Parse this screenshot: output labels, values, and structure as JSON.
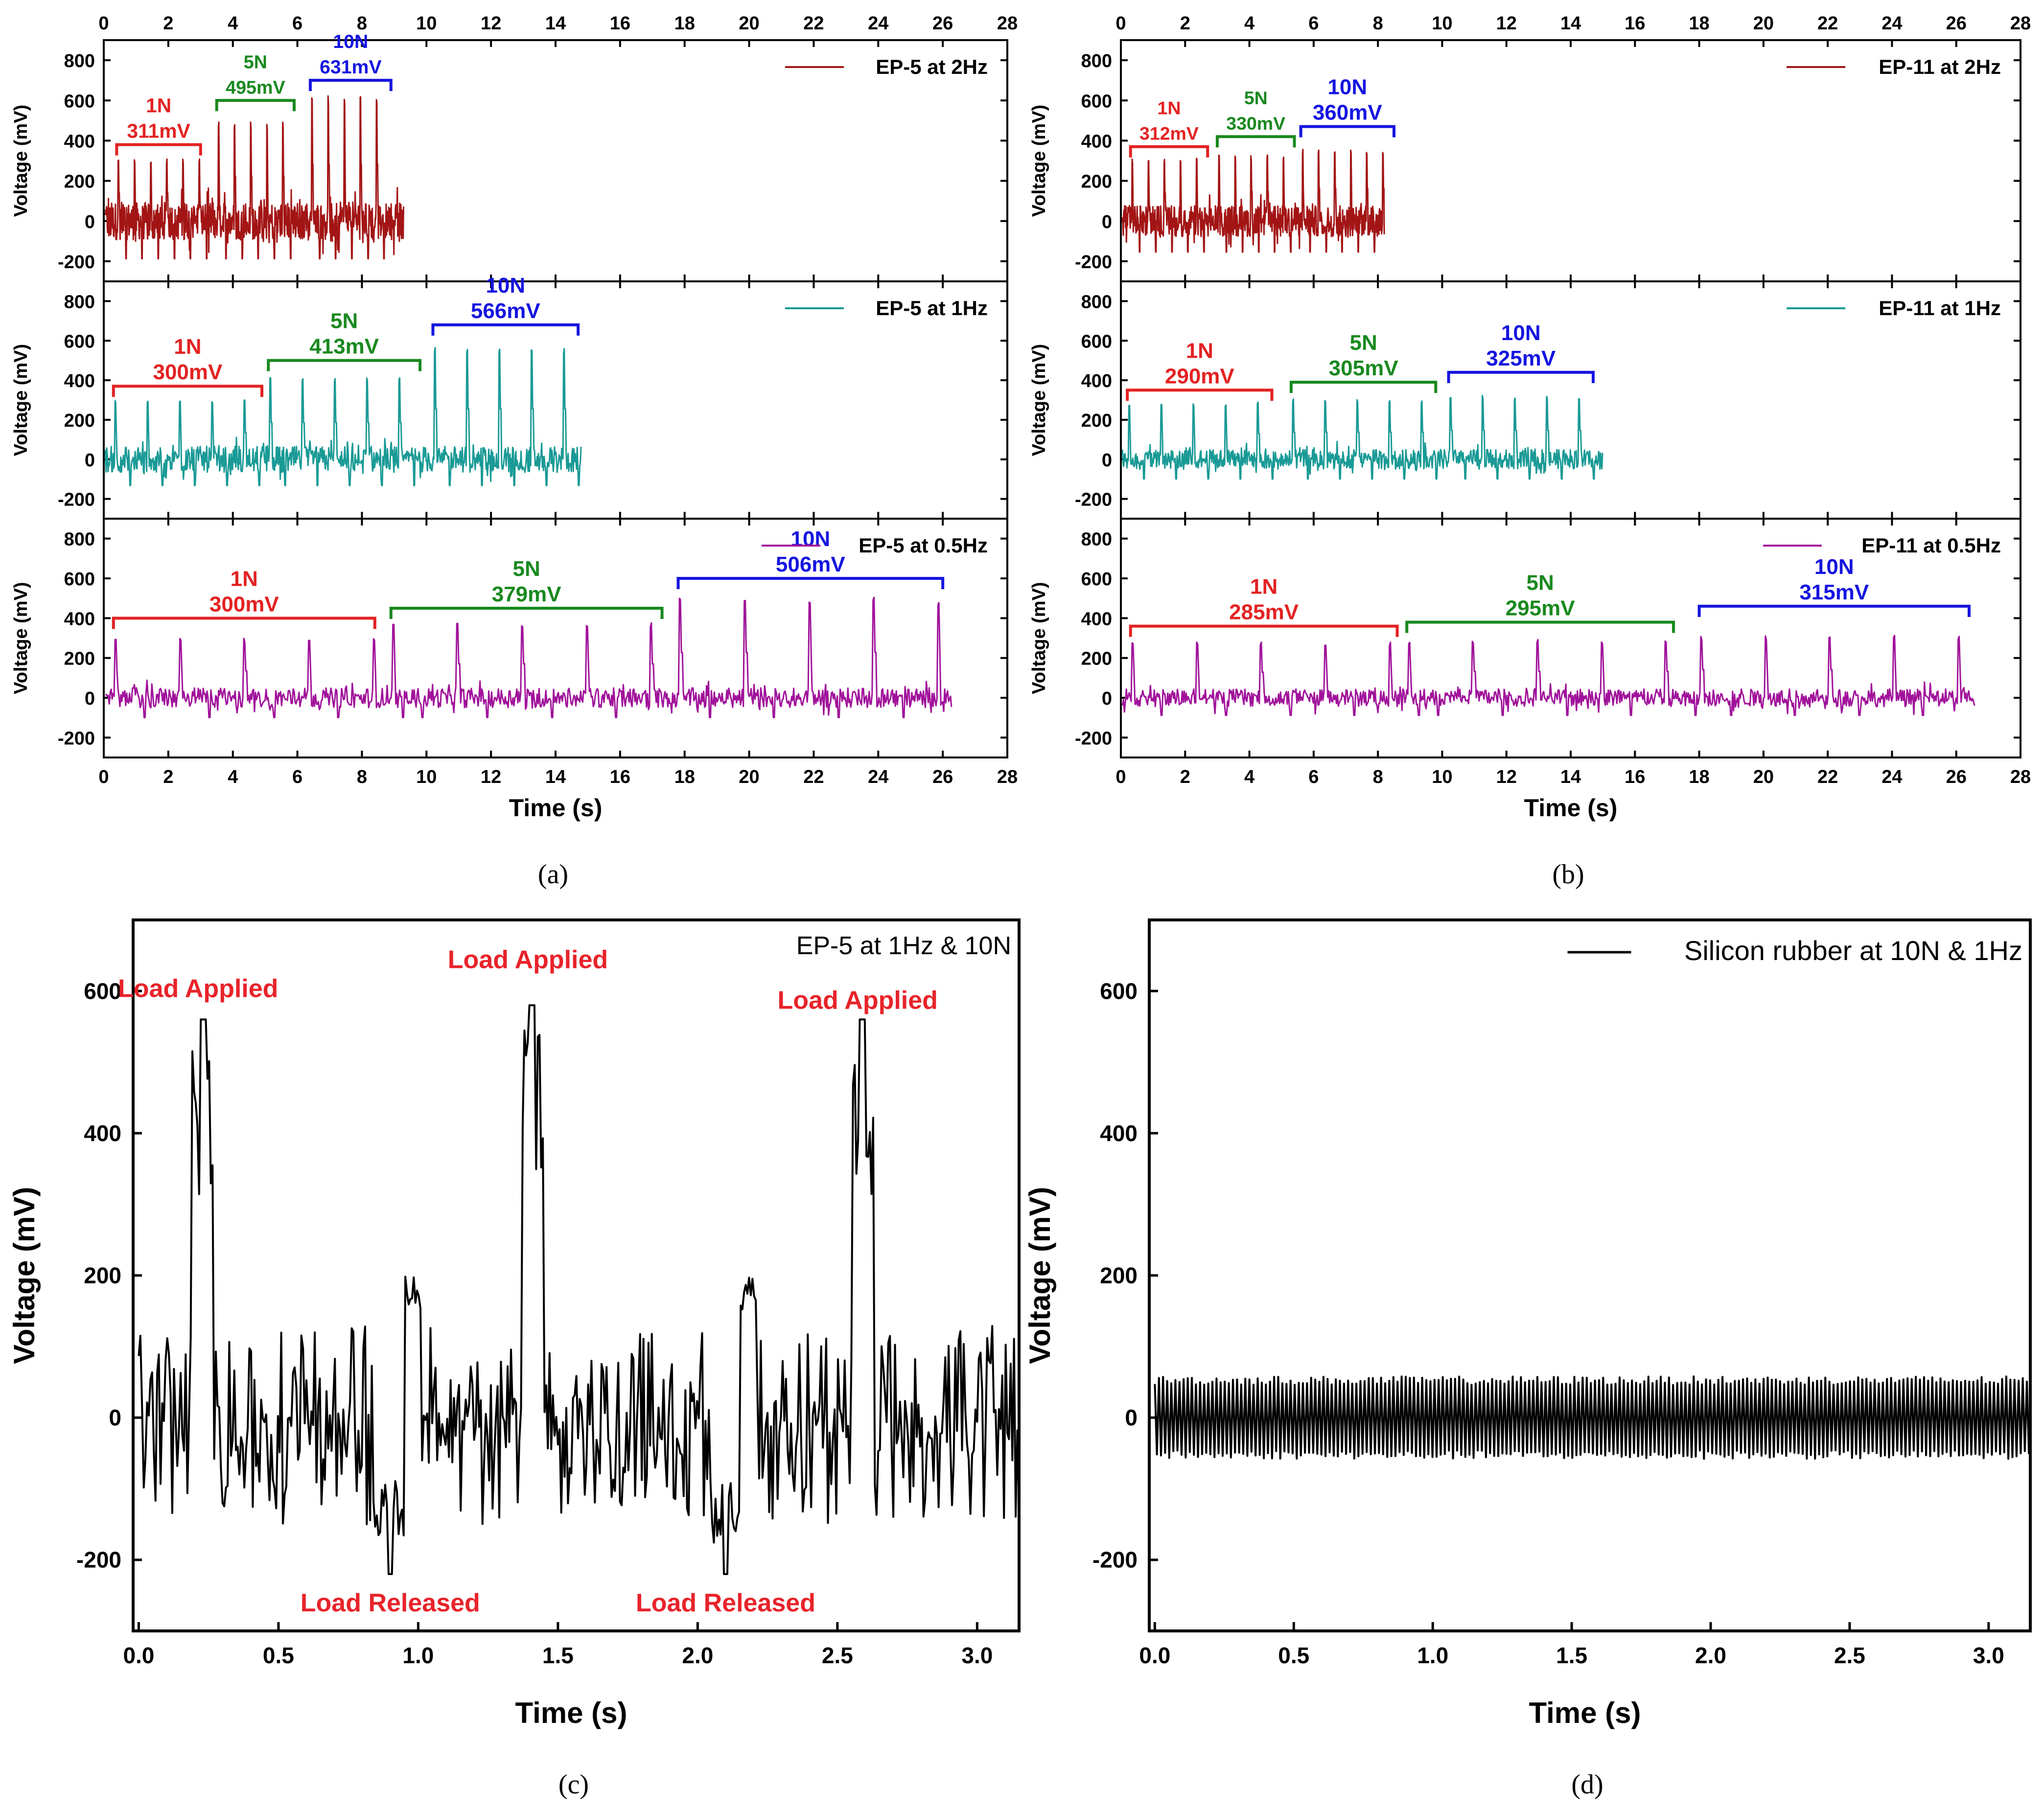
{
  "chart_data": [
    {
      "panel": "a",
      "type": "line",
      "caption": "(a)",
      "xlabel": "Time (s)",
      "xlim": [
        0,
        28
      ],
      "xticks": [
        0,
        2,
        4,
        6,
        8,
        10,
        12,
        14,
        16,
        18,
        20,
        22,
        24,
        26,
        28
      ],
      "subplots": [
        {
          "ylabel": "Voltage (mV)",
          "ylim": [
            -300,
            900
          ],
          "yticks": [
            -200,
            0,
            200,
            400,
            600,
            800
          ],
          "legend": "EP-5 at 2Hz",
          "color": "#a31515",
          "freq_hz": 2,
          "x_end": 9.3,
          "baseline_amp": 170,
          "groups": [
            {
              "force": "1N",
              "value": "311mV",
              "x_start": 0.4,
              "x_end": 3.0,
              "peak": 311,
              "color": "#e32222",
              "level": 380,
              "label_bracket_gap": [
                0.55,
                0.75
              ]
            },
            {
              "force": "5N",
              "value": "495mV",
              "x_start": 3.5,
              "x_end": 5.9,
              "peak": 495,
              "color": "#19891f",
              "level": 600,
              "label_bracket_gap": [
                0.55,
                0.75
              ]
            },
            {
              "force": "10N",
              "value": "631mV",
              "x_start": 6.4,
              "x_end": 8.9,
              "peak": 631,
              "color": "#1515e0",
              "level": 700,
              "label_bracket_gap": [
                0.55,
                0.75
              ]
            }
          ]
        },
        {
          "ylabel": "Voltage (mV)",
          "ylim": [
            -300,
            900
          ],
          "yticks": [
            -200,
            0,
            200,
            400,
            600,
            800
          ],
          "legend": "EP-5 at 1Hz",
          "color": "#1a9a96",
          "freq_hz": 1,
          "x_end": 14.8,
          "baseline_amp": 120,
          "groups": [
            {
              "force": "1N",
              "value": "300mV",
              "x_start": 0.3,
              "x_end": 4.9,
              "peak": 300,
              "color": "#e32222",
              "level": 370
            },
            {
              "force": "5N",
              "value": "413mV",
              "x_start": 5.1,
              "x_end": 9.8,
              "peak": 413,
              "color": "#19891f",
              "level": 500
            },
            {
              "force": "10N",
              "value": "566mV",
              "x_start": 10.2,
              "x_end": 14.7,
              "peak": 566,
              "color": "#1515e0",
              "level": 680
            }
          ]
        },
        {
          "ylabel": "Voltage (mV)",
          "ylim": [
            -300,
            900
          ],
          "yticks": [
            -200,
            0,
            200,
            400,
            600,
            800
          ],
          "legend": "EP-5 at 0.5Hz",
          "color": "#a0129a",
          "freq_hz": 0.5,
          "x_end": 26.3,
          "baseline_amp": 90,
          "groups": [
            {
              "force": "1N",
              "value": "300mV",
              "x_start": 0.3,
              "x_end": 8.4,
              "peak": 300,
              "color": "#e32222",
              "level": 400
            },
            {
              "force": "5N",
              "value": "379mV",
              "x_start": 8.9,
              "x_end": 17.3,
              "peak": 379,
              "color": "#19891f",
              "level": 450
            },
            {
              "force": "10N",
              "value": "506mV",
              "x_start": 17.8,
              "x_end": 26.0,
              "peak": 506,
              "color": "#1515e0",
              "level": 600
            }
          ]
        }
      ]
    },
    {
      "panel": "b",
      "type": "line",
      "caption": "(b)",
      "xlabel": "Time (s)",
      "xlim": [
        0,
        28
      ],
      "xticks": [
        0,
        2,
        4,
        6,
        8,
        10,
        12,
        14,
        16,
        18,
        20,
        22,
        24,
        26,
        28
      ],
      "subplots": [
        {
          "ylabel": "Voltage (mV)",
          "ylim": [
            -300,
            900
          ],
          "yticks": [
            -200,
            0,
            200,
            400,
            600,
            800
          ],
          "legend": "EP-11 at 2Hz",
          "color": "#a31515",
          "freq_hz": 2,
          "x_end": 8.2,
          "baseline_amp": 140,
          "groups": [
            {
              "force": "1N",
              "value": "312mV",
              "x_start": 0.3,
              "x_end": 2.7,
              "peak": 312,
              "color": "#e32222",
              "level": 370
            },
            {
              "force": "5N",
              "value": "330mV",
              "x_start": 3.0,
              "x_end": 5.4,
              "peak": 330,
              "color": "#19891f",
              "level": 420
            },
            {
              "force": "10N",
              "value": "360mV",
              "x_start": 5.6,
              "x_end": 8.5,
              "peak": 360,
              "color": "#1515e0",
              "level": 470
            }
          ]
        },
        {
          "ylabel": "Voltage (mV)",
          "ylim": [
            -300,
            900
          ],
          "yticks": [
            -200,
            0,
            200,
            400,
            600,
            800
          ],
          "legend": "EP-11 at 1Hz",
          "color": "#1a9a96",
          "freq_hz": 1,
          "x_end": 15.0,
          "baseline_amp": 90,
          "groups": [
            {
              "force": "1N",
              "value": "290mV",
              "x_start": 0.2,
              "x_end": 4.7,
              "peak": 290,
              "color": "#e32222",
              "level": 350
            },
            {
              "force": "5N",
              "value": "305mV",
              "x_start": 5.3,
              "x_end": 9.8,
              "peak": 305,
              "color": "#19891f",
              "level": 390
            },
            {
              "force": "10N",
              "value": "325mV",
              "x_start": 10.2,
              "x_end": 14.7,
              "peak": 325,
              "color": "#1515e0",
              "level": 440
            }
          ]
        },
        {
          "ylabel": "Voltage (mV)",
          "ylim": [
            -300,
            900
          ],
          "yticks": [
            -200,
            0,
            200,
            400,
            600,
            800
          ],
          "legend": "EP-11 at 0.5Hz",
          "color": "#a0129a",
          "freq_hz": 0.5,
          "x_end": 26.6,
          "baseline_amp": 80,
          "groups": [
            {
              "force": "1N",
              "value": "285mV",
              "x_start": 0.3,
              "x_end": 8.6,
              "peak": 285,
              "color": "#e32222",
              "level": 360
            },
            {
              "force": "5N",
              "value": "295mV",
              "x_start": 8.9,
              "x_end": 17.2,
              "peak": 295,
              "color": "#19891f",
              "level": 380
            },
            {
              "force": "10N",
              "value": "315mV",
              "x_start": 18.0,
              "x_end": 26.4,
              "peak": 315,
              "color": "#1515e0",
              "level": 460
            }
          ]
        }
      ]
    },
    {
      "panel": "c",
      "type": "line",
      "caption": "(c)",
      "xlabel": "Time (s)",
      "ylabel": "Voltage (mV)",
      "xlim": [
        -0.02,
        3.15
      ],
      "ylim": [
        -300,
        700
      ],
      "xticks": [
        0.0,
        0.5,
        1.0,
        1.5,
        2.0,
        2.5,
        3.0
      ],
      "yticks": [
        -200,
        0,
        200,
        400,
        600
      ],
      "legend": "EP-5 at 1Hz & 10N",
      "series_color": "#000000",
      "peaks": [
        {
          "x": 0.23,
          "y": 560,
          "label": "Load Applied"
        },
        {
          "x": 1.41,
          "y": 580,
          "label": "Load Applied"
        },
        {
          "x": 2.59,
          "y": 560,
          "label": "Load Applied"
        }
      ],
      "troughs": [
        {
          "x": 0.9,
          "y": -220,
          "label": "Load Released"
        },
        {
          "x": 2.1,
          "y": -220,
          "label": "Load Released"
        }
      ]
    },
    {
      "panel": "d",
      "type": "line",
      "caption": "(d)",
      "xlabel": "Time (s)",
      "ylabel": "Voltage (mV)",
      "xlim": [
        -0.02,
        3.15
      ],
      "ylim": [
        -300,
        700
      ],
      "xticks": [
        0.0,
        0.5,
        1.0,
        1.5,
        2.0,
        2.5,
        3.0
      ],
      "yticks": [
        -200,
        0,
        200,
        400,
        600
      ],
      "legend": "Silicon rubber at 10N & 1Hz",
      "series_color": "#000000",
      "amplitude": [
        -60,
        60
      ]
    }
  ]
}
